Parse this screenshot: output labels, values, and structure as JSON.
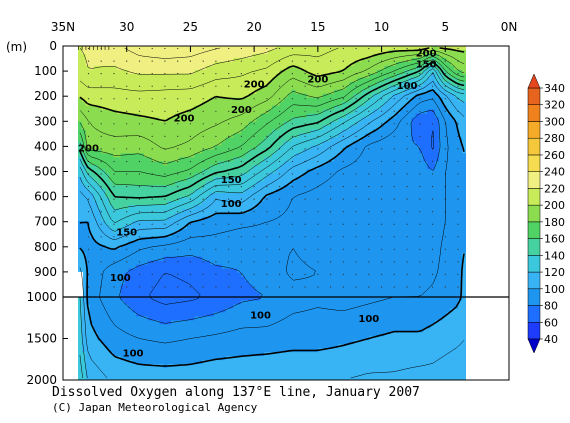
{
  "chart_data": {
    "type": "heatmap",
    "title": "Dissolved Oxygen along 137°E line, January 2007",
    "credit": "(C) Japan Meteorological Agency",
    "x_ticks": [
      {
        "value": 35,
        "label": "35N"
      },
      {
        "value": 30,
        "label": "30"
      },
      {
        "value": 25,
        "label": "25"
      },
      {
        "value": 20,
        "label": "20"
      },
      {
        "value": 15,
        "label": "15"
      },
      {
        "value": 10,
        "label": "10"
      },
      {
        "value": 5,
        "label": "5"
      },
      {
        "value": 0,
        "label": "0N"
      }
    ],
    "xlim": [
      35,
      0
    ],
    "ylabel": "(m)",
    "y_ticks_upper": [
      {
        "value": 0,
        "label": "0"
      },
      {
        "value": 100,
        "label": "100"
      },
      {
        "value": 200,
        "label": "200"
      },
      {
        "value": 300,
        "label": "300"
      },
      {
        "value": 400,
        "label": "400"
      },
      {
        "value": 500,
        "label": "500"
      },
      {
        "value": 600,
        "label": "600"
      },
      {
        "value": 700,
        "label": "700"
      },
      {
        "value": 800,
        "label": "800"
      },
      {
        "value": 900,
        "label": "900"
      },
      {
        "value": 1000,
        "label": "1000"
      }
    ],
    "y_ticks_lower": [
      {
        "value": 1500,
        "label": "1500"
      },
      {
        "value": 2000,
        "label": "2000"
      }
    ],
    "ylim": [
      0,
      2000
    ],
    "data_lat_range": [
      33.8,
      3.4
    ],
    "colorbar": {
      "levels": [
        40,
        60,
        80,
        100,
        120,
        140,
        160,
        180,
        200,
        220,
        240,
        260,
        280,
        300,
        320,
        340
      ],
      "labels": [
        "40",
        "60",
        "80",
        "100",
        "120",
        "140",
        "160",
        "180",
        "200",
        "220",
        "240",
        "260",
        "280",
        "300",
        "320",
        "340"
      ],
      "colors": [
        "#1e3cff",
        "#1e6eff",
        "#1e96f0",
        "#38b4f5",
        "#3cc8dc",
        "#46d2a0",
        "#50d264",
        "#8cdc50",
        "#c8eb5a",
        "#f0f082",
        "#f5dc50",
        "#f5c83c",
        "#f5aa28",
        "#f0821e",
        "#e6641e"
      ],
      "under_color": "#0000c8",
      "over_color": "#e6461e"
    },
    "contour_labels": [
      {
        "text": "200",
        "lat": 6.5,
        "depth": 25
      },
      {
        "text": "150",
        "lat": 6.5,
        "depth": 70
      },
      {
        "text": "200",
        "lat": 15.0,
        "depth": 130
      },
      {
        "text": "200",
        "lat": 20.0,
        "depth": 150
      },
      {
        "text": "200",
        "lat": 21.0,
        "depth": 250
      },
      {
        "text": "200",
        "lat": 25.5,
        "depth": 285
      },
      {
        "text": "200",
        "lat": 33.0,
        "depth": 405
      },
      {
        "text": "100",
        "lat": 8.0,
        "depth": 155
      },
      {
        "text": "150",
        "lat": 21.8,
        "depth": 530
      },
      {
        "text": "100",
        "lat": 21.8,
        "depth": 625
      },
      {
        "text": "150",
        "lat": 30.0,
        "depth": 740
      },
      {
        "text": "100",
        "lat": 30.5,
        "depth": 920
      },
      {
        "text": "100",
        "lat": 19.5,
        "depth": 1210
      },
      {
        "text": "100",
        "lat": 11.0,
        "depth": 1250
      },
      {
        "text": "100",
        "lat": 29.5,
        "depth": 1670
      }
    ],
    "section": {
      "lats": [
        33.8,
        33,
        31,
        29,
        27,
        25,
        23,
        21,
        19,
        17,
        15,
        13,
        11,
        9,
        7,
        6,
        5,
        4,
        3.4
      ],
      "depths": [
        0,
        100,
        200,
        300,
        400,
        500,
        600,
        700,
        800,
        900,
        1000,
        1500,
        2000
      ],
      "values": [
        [
          220,
          222,
          228,
          235,
          238,
          236,
          232,
          228,
          224,
          218,
          214,
          210,
          210,
          208,
          210,
          205,
          205,
          205,
          205
        ],
        [
          215,
          220,
          218,
          222,
          222,
          222,
          215,
          212,
          208,
          195,
          205,
          200,
          188,
          170,
          150,
          120,
          160,
          180,
          185
        ],
        [
          200,
          205,
          206,
          207,
          206,
          205,
          200,
          202,
          194,
          176,
          182,
          172,
          144,
          118,
          96,
          92,
          108,
          122,
          125
        ],
        [
          180,
          190,
          196,
          198,
          200,
          196,
          192,
          186,
          172,
          158,
          152,
          132,
          112,
          95,
          72,
          70,
          90,
          102,
          108
        ],
        [
          150,
          186,
          186,
          184,
          192,
          188,
          180,
          170,
          154,
          130,
          118,
          102,
          88,
          82,
          80,
          68,
          88,
          97,
          102
        ],
        [
          120,
          145,
          170,
          170,
          175,
          168,
          152,
          145,
          125,
          106,
          96,
          88,
          84,
          86,
          86,
          80,
          90,
          95,
          97
        ],
        [
          105,
          112,
          150,
          152,
          150,
          138,
          112,
          116,
          98,
          90,
          86,
          82,
          82,
          84,
          86,
          84,
          90,
          95,
          97
        ],
        [
          100,
          100,
          132,
          118,
          118,
          100,
          94,
          92,
          90,
          88,
          84,
          80,
          80,
          84,
          85,
          84,
          90,
          96,
          98
        ],
        [
          100,
          96,
          102,
          92,
          88,
          84,
          86,
          84,
          86,
          90,
          86,
          80,
          80,
          84,
          86,
          86,
          92,
          98,
          100
        ],
        [
          115,
          98,
          84,
          76,
          70,
          72,
          78,
          80,
          84,
          92,
          90,
          82,
          84,
          84,
          86,
          88,
          93,
          98,
          102
        ],
        [
          125,
          96,
          82,
          72,
          66,
          68,
          72,
          78,
          80,
          86,
          88,
          86,
          88,
          90,
          90,
          92,
          95,
          98,
          103
        ],
        [
          130,
          104,
          94,
          90,
          88,
          90,
          92,
          94,
          94,
          96,
          96,
          98,
          100,
          102,
          102,
          104,
          106,
          108,
          110
        ],
        [
          140,
          118,
          108,
          106,
          106,
          106,
          108,
          108,
          110,
          110,
          110,
          110,
          112,
          112,
          114,
          114,
          116,
          118,
          120
        ]
      ]
    }
  }
}
